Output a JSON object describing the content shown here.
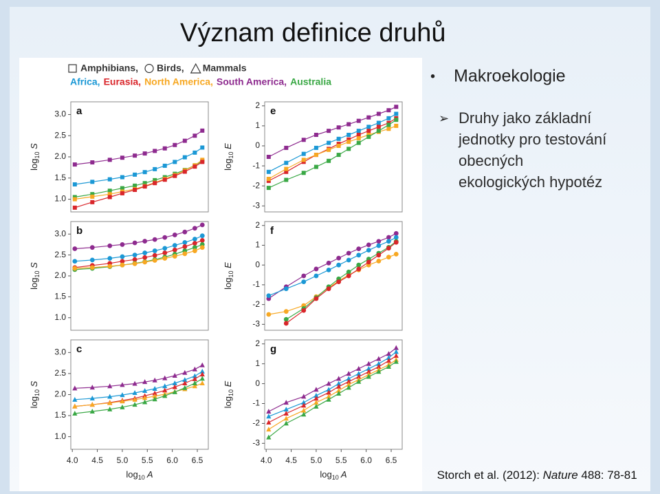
{
  "slide": {
    "title": "Význam definice druhů",
    "bullet": "Makroekologie",
    "sub_bullet_lines": [
      "Druhy jako základní",
      "jednotky pro testování",
      "obecných",
      "ekologických hypotéz"
    ],
    "citation": [
      "Storch et al. (2012): ",
      "Nature",
      " 488: 78-81"
    ],
    "figure_legend": {
      "taxa": [
        {
          "marker": "square",
          "text": "Amphibians,"
        },
        {
          "marker": "circle",
          "text": "Birds,"
        },
        {
          "marker": "triangle",
          "text": "Mammals"
        }
      ],
      "regions": [
        {
          "text": "Africa,",
          "color": "#1b98d5"
        },
        {
          "text": "Eurasia,",
          "color": "#d9262b"
        },
        {
          "text": "North America,",
          "color": "#f7a823"
        },
        {
          "text": "South America,",
          "color": "#8e2b8f"
        },
        {
          "text": "Australia",
          "color": "#3aa845"
        }
      ]
    }
  },
  "chart_data": [
    {
      "type": "line",
      "panel": "a",
      "marker": "square",
      "x": [
        4.05,
        4.4,
        4.75,
        5.0,
        5.25,
        5.45,
        5.65,
        5.85,
        6.05,
        6.25,
        6.45,
        6.6
      ],
      "xlim": [
        3.97,
        6.72
      ],
      "ylim": [
        0.7,
        3.3
      ],
      "yticks": [
        {
          "value": 1,
          "label": "1.0"
        },
        1.5,
        {
          "value": 2,
          "label": "2.0"
        },
        2.5,
        {
          "value": 3,
          "label": "3.0"
        }
      ],
      "y_label": [
        "log",
        "10",
        " S"
      ],
      "series": [
        {
          "color": "#8e2b8f",
          "values": [
            1.82,
            1.87,
            1.93,
            1.98,
            2.03,
            2.08,
            2.14,
            2.2,
            2.28,
            2.38,
            2.5,
            2.62
          ]
        },
        {
          "color": "#1b98d5",
          "values": [
            1.35,
            1.41,
            1.47,
            1.52,
            1.58,
            1.64,
            1.71,
            1.79,
            1.88,
            1.99,
            2.1,
            2.22
          ]
        },
        {
          "color": "#3aa845",
          "values": [
            1.05,
            1.12,
            1.2,
            1.26,
            1.32,
            1.38,
            1.45,
            1.52,
            1.6,
            1.69,
            1.8,
            1.9
          ]
        },
        {
          "color": "#f7a823",
          "values": [
            1.0,
            1.06,
            1.12,
            1.18,
            1.24,
            1.31,
            1.39,
            1.48,
            1.57,
            1.68,
            1.8,
            1.93
          ]
        },
        {
          "color": "#d9262b",
          "values": [
            0.8,
            0.93,
            1.05,
            1.14,
            1.22,
            1.3,
            1.38,
            1.46,
            1.55,
            1.65,
            1.77,
            1.88
          ]
        }
      ]
    },
    {
      "type": "line",
      "panel": "b",
      "marker": "circle",
      "x": [
        4.05,
        4.4,
        4.75,
        5.0,
        5.25,
        5.45,
        5.65,
        5.85,
        6.05,
        6.25,
        6.45,
        6.6
      ],
      "xlim": [
        3.97,
        6.72
      ],
      "ylim": [
        0.7,
        3.3
      ],
      "yticks": [
        {
          "value": 1,
          "label": "1.0"
        },
        1.5,
        {
          "value": 2,
          "label": "2.0"
        },
        2.5,
        {
          "value": 3,
          "label": "3.0"
        }
      ],
      "y_label": [
        "log",
        "10",
        " S"
      ],
      "series": [
        {
          "color": "#8e2b8f",
          "values": [
            2.65,
            2.68,
            2.72,
            2.75,
            2.79,
            2.83,
            2.87,
            2.92,
            2.98,
            3.05,
            3.14,
            3.22
          ]
        },
        {
          "color": "#1b98d5",
          "values": [
            2.35,
            2.38,
            2.42,
            2.46,
            2.5,
            2.55,
            2.6,
            2.66,
            2.73,
            2.8,
            2.88,
            2.96
          ]
        },
        {
          "color": "#d9262b",
          "values": [
            2.2,
            2.25,
            2.3,
            2.35,
            2.39,
            2.44,
            2.49,
            2.55,
            2.62,
            2.7,
            2.78,
            2.85
          ]
        },
        {
          "color": "#3aa845",
          "values": [
            2.15,
            2.18,
            2.22,
            2.26,
            2.3,
            2.34,
            2.39,
            2.45,
            2.52,
            2.6,
            2.68,
            2.75
          ]
        },
        {
          "color": "#f7a823",
          "values": [
            2.18,
            2.2,
            2.23,
            2.26,
            2.29,
            2.33,
            2.37,
            2.42,
            2.47,
            2.53,
            2.6,
            2.68
          ]
        }
      ]
    },
    {
      "type": "line",
      "panel": "c",
      "marker": "triangle",
      "x": [
        4.05,
        4.4,
        4.75,
        5.0,
        5.25,
        5.45,
        5.65,
        5.85,
        6.05,
        6.25,
        6.45,
        6.6
      ],
      "xlim": [
        3.97,
        6.72
      ],
      "ylim": [
        0.7,
        3.3
      ],
      "xticks": [
        {
          "value": 4,
          "label": "4.0"
        },
        4.5,
        {
          "value": 5,
          "label": "5.0"
        },
        5.5,
        {
          "value": 6,
          "label": "6.0"
        },
        6.5
      ],
      "yticks": [
        {
          "value": 1,
          "label": "1.0"
        },
        1.5,
        {
          "value": 2,
          "label": "2.0"
        },
        2.5,
        {
          "value": 3,
          "label": "3.0"
        }
      ],
      "x_label": [
        "log",
        "10",
        " A"
      ],
      "y_label": [
        "log",
        "10",
        " S"
      ],
      "series": [
        {
          "color": "#8e2b8f",
          "values": [
            2.15,
            2.17,
            2.2,
            2.23,
            2.26,
            2.3,
            2.34,
            2.39,
            2.45,
            2.52,
            2.6,
            2.7
          ]
        },
        {
          "color": "#1b98d5",
          "values": [
            1.88,
            1.91,
            1.95,
            1.99,
            2.04,
            2.09,
            2.14,
            2.2,
            2.27,
            2.35,
            2.44,
            2.55
          ]
        },
        {
          "color": "#d9262b",
          "values": [
            1.72,
            1.76,
            1.81,
            1.86,
            1.91,
            1.97,
            2.03,
            2.1,
            2.18,
            2.27,
            2.37,
            2.48
          ]
        },
        {
          "color": "#f7a823",
          "values": [
            1.72,
            1.76,
            1.8,
            1.84,
            1.88,
            1.92,
            1.96,
            2.01,
            2.07,
            2.13,
            2.2,
            2.27
          ]
        },
        {
          "color": "#3aa845",
          "values": [
            1.55,
            1.6,
            1.65,
            1.7,
            1.76,
            1.82,
            1.89,
            1.97,
            2.06,
            2.16,
            2.27,
            2.38
          ]
        }
      ]
    },
    {
      "type": "line",
      "panel": "e",
      "marker": "square",
      "x": [
        4.05,
        4.4,
        4.75,
        5.0,
        5.25,
        5.45,
        5.65,
        5.85,
        6.05,
        6.25,
        6.45,
        6.6
      ],
      "xlim": [
        3.97,
        6.72
      ],
      "ylim": [
        -3.3,
        2.2
      ],
      "yticks": [
        -3,
        -2,
        -1,
        0,
        1,
        2
      ],
      "y_label": [
        "log",
        "10",
        " E"
      ],
      "series": [
        {
          "color": "#8e2b8f",
          "values": [
            -0.55,
            -0.1,
            0.3,
            0.55,
            0.75,
            0.92,
            1.08,
            1.25,
            1.42,
            1.6,
            1.78,
            1.95
          ]
        },
        {
          "color": "#1b98d5",
          "values": [
            -1.3,
            -0.85,
            -0.4,
            -0.1,
            0.15,
            0.35,
            0.55,
            0.75,
            0.95,
            1.15,
            1.38,
            1.6
          ]
        },
        {
          "color": "#d9262b",
          "values": [
            -1.75,
            -1.3,
            -0.8,
            -0.45,
            -0.15,
            0.1,
            0.32,
            0.55,
            0.75,
            0.95,
            1.15,
            1.38
          ]
        },
        {
          "color": "#f7a823",
          "values": [
            -1.65,
            -1.15,
            -0.7,
            -0.45,
            -0.2,
            0.0,
            0.2,
            0.38,
            0.55,
            0.7,
            0.85,
            1.0
          ]
        },
        {
          "color": "#3aa845",
          "values": [
            -2.1,
            -1.7,
            -1.35,
            -1.05,
            -0.75,
            -0.45,
            -0.15,
            0.15,
            0.45,
            0.75,
            1.05,
            1.3
          ]
        }
      ]
    },
    {
      "type": "line",
      "panel": "f",
      "marker": "circle",
      "x": [
        4.05,
        4.4,
        4.75,
        5.0,
        5.25,
        5.45,
        5.65,
        5.85,
        6.05,
        6.25,
        6.45,
        6.6
      ],
      "xlim": [
        3.97,
        6.72
      ],
      "ylim": [
        -3.3,
        2.2
      ],
      "yticks": [
        -3,
        -2,
        -1,
        0,
        1,
        2
      ],
      "y_label": [
        "log",
        "10",
        " E"
      ],
      "series": [
        {
          "color": "#8e2b8f",
          "values": [
            -1.7,
            -1.1,
            -0.55,
            -0.2,
            0.1,
            0.35,
            0.6,
            0.82,
            1.02,
            1.2,
            1.4,
            1.6
          ]
        },
        {
          "color": "#1b98d5",
          "values": [
            -1.55,
            -1.2,
            -0.85,
            -0.55,
            -0.25,
            0.0,
            0.25,
            0.5,
            0.75,
            0.98,
            1.2,
            1.4
          ]
        },
        {
          "color": "#f7a823",
          "values": [
            -2.5,
            -2.35,
            -2.05,
            -1.6,
            -1.15,
            -0.8,
            -0.5,
            -0.25,
            0,
            0.2,
            0.4,
            0.55
          ]
        },
        {
          "color": "#3aa845",
          "values": [
            null,
            -2.75,
            -2.2,
            -1.65,
            -1.1,
            -0.7,
            -0.35,
            0,
            0.3,
            0.6,
            0.9,
            1.2
          ]
        },
        {
          "color": "#d9262b",
          "values": [
            null,
            -2.95,
            -2.3,
            -1.7,
            -1.2,
            -0.85,
            -0.55,
            -0.2,
            0.15,
            0.5,
            0.85,
            1.15
          ]
        }
      ]
    },
    {
      "type": "line",
      "panel": "g",
      "marker": "triangle",
      "x": [
        4.05,
        4.4,
        4.75,
        5.0,
        5.25,
        5.45,
        5.65,
        5.85,
        6.05,
        6.25,
        6.45,
        6.6
      ],
      "xlim": [
        3.97,
        6.72
      ],
      "ylim": [
        -3.3,
        2.2
      ],
      "xticks": [
        {
          "value": 4,
          "label": "4.0"
        },
        4.5,
        {
          "value": 5,
          "label": "5.0"
        },
        5.5,
        {
          "value": 6,
          "label": "6.0"
        },
        6.5
      ],
      "yticks": [
        -3,
        -2,
        -1,
        0,
        1,
        2
      ],
      "x_label": [
        "log",
        "10",
        " A"
      ],
      "y_label": [
        "log",
        "10",
        " E"
      ],
      "series": [
        {
          "color": "#8e2b8f",
          "values": [
            -1.4,
            -0.95,
            -0.65,
            -0.3,
            0.0,
            0.25,
            0.5,
            0.75,
            1.0,
            1.25,
            1.5,
            1.8
          ]
        },
        {
          "color": "#1b98d5",
          "values": [
            -1.65,
            -1.3,
            -0.95,
            -0.6,
            -0.3,
            0,
            0.25,
            0.5,
            0.75,
            1.0,
            1.3,
            1.6
          ]
        },
        {
          "color": "#d9262b",
          "values": [
            -1.95,
            -1.5,
            -1.1,
            -0.75,
            -0.45,
            -0.15,
            0.1,
            0.35,
            0.6,
            0.85,
            1.15,
            1.4
          ]
        },
        {
          "color": "#f7a823",
          "values": [
            -2.3,
            -1.75,
            -1.35,
            -0.95,
            -0.65,
            -0.35,
            -0.05,
            0.2,
            0.45,
            0.7,
            0.95,
            1.2
          ]
        },
        {
          "color": "#3aa845",
          "values": [
            -2.7,
            -2.0,
            -1.55,
            -1.15,
            -0.8,
            -0.5,
            -0.2,
            0.1,
            0.35,
            0.6,
            0.85,
            1.1
          ]
        }
      ]
    }
  ]
}
